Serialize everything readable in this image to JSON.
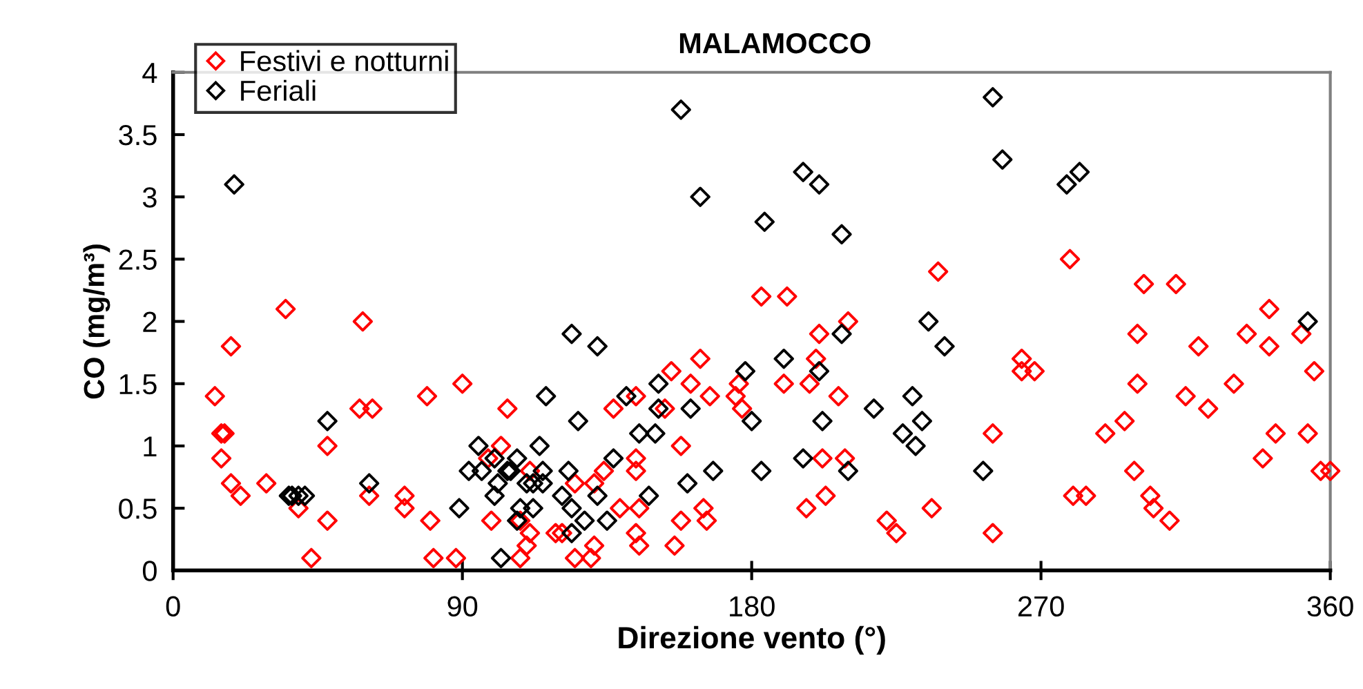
{
  "chart_data": {
    "type": "scatter",
    "title": "MALAMOCCO",
    "xlabel": "Direzione vento (°)",
    "ylabel": "CO (mg/m³)",
    "xlim": [
      0,
      360
    ],
    "xticks": [
      0,
      90,
      180,
      270,
      360
    ],
    "ylim": [
      0,
      4
    ],
    "yticks": [
      0,
      0.5,
      1,
      1.5,
      2,
      2.5,
      3,
      3.5,
      4
    ],
    "marker": "diamond",
    "legend": "top left",
    "grid": false,
    "series": [
      {
        "name": "Festivi e notturni",
        "color": "#ff0000",
        "x": [
          13,
          15,
          16,
          15,
          18,
          18,
          21,
          29,
          35,
          39,
          43,
          48,
          48,
          59,
          58,
          62,
          61,
          72,
          72,
          79,
          80,
          81,
          88,
          90,
          99,
          102,
          104,
          98,
          111,
          108,
          111,
          110,
          108,
          119,
          121,
          125,
          125,
          130,
          131,
          131,
          134,
          137,
          139,
          144,
          144,
          144,
          145,
          144,
          145,
          153,
          155,
          156,
          158,
          158,
          161,
          164,
          167,
          165,
          166,
          175,
          176,
          177,
          183,
          190,
          191,
          197,
          198,
          200,
          201,
          202,
          203,
          207,
          209,
          210,
          222,
          225,
          236,
          238,
          255,
          255,
          264,
          264,
          268,
          279,
          280,
          284,
          290,
          296,
          299,
          300,
          300,
          302,
          304,
          305,
          310,
          312,
          315,
          319,
          322,
          330,
          334,
          339,
          341,
          341,
          343,
          351,
          353,
          355,
          357,
          360
        ],
        "values": [
          1.4,
          1.1,
          1.1,
          0.9,
          1.8,
          0.7,
          0.6,
          0.7,
          2.1,
          0.5,
          0.1,
          0.4,
          1.0,
          2.0,
          1.3,
          1.3,
          0.6,
          0.6,
          0.5,
          1.4,
          0.4,
          0.1,
          0.1,
          1.5,
          0.4,
          1.0,
          1.3,
          0.9,
          0.8,
          0.4,
          0.3,
          0.2,
          0.1,
          0.3,
          0.3,
          0.7,
          0.1,
          0.1,
          0.2,
          0.7,
          0.8,
          1.3,
          0.5,
          1.4,
          0.9,
          0.8,
          0.5,
          0.3,
          0.2,
          1.3,
          1.6,
          0.2,
          0.4,
          1.0,
          1.5,
          1.7,
          1.4,
          0.5,
          0.4,
          1.4,
          1.5,
          1.3,
          2.2,
          1.5,
          2.2,
          0.5,
          1.5,
          1.7,
          1.9,
          0.9,
          0.6,
          1.4,
          0.9,
          2.0,
          0.4,
          0.3,
          0.5,
          2.4,
          1.1,
          0.3,
          1.7,
          1.6,
          1.6,
          2.5,
          0.6,
          0.6,
          1.1,
          1.2,
          0.8,
          1.5,
          1.9,
          2.3,
          0.6,
          0.5,
          0.4,
          2.3,
          1.4,
          1.8,
          1.3,
          1.5,
          1.9,
          0.9,
          2.1,
          1.8,
          1.1,
          1.9,
          1.1,
          1.6,
          0.8,
          0.8
        ]
      },
      {
        "name": "Feriali",
        "color": "#000000",
        "x": [
          19,
          36,
          37,
          39,
          41,
          48,
          61,
          89,
          92,
          95,
          96,
          100,
          100,
          101,
          102,
          104,
          105,
          107,
          107,
          108,
          110,
          112,
          112,
          114,
          115,
          115,
          116,
          121,
          123,
          124,
          124,
          124,
          126,
          132,
          128,
          132,
          135,
          137,
          141,
          145,
          150,
          151,
          151,
          148,
          158,
          160,
          161,
          164,
          168,
          178,
          180,
          183,
          184,
          190,
          196,
          196,
          201,
          201,
          202,
          208,
          208,
          210,
          218,
          227,
          230,
          233,
          231,
          235,
          240,
          255,
          252,
          258,
          278,
          282,
          353
        ],
        "values": [
          3.1,
          0.6,
          0.6,
          0.6,
          0.6,
          1.2,
          0.7,
          0.5,
          0.8,
          1.0,
          0.8,
          0.9,
          0.6,
          0.7,
          0.1,
          0.8,
          0.8,
          0.9,
          0.4,
          0.5,
          0.7,
          0.7,
          0.5,
          1.0,
          0.8,
          0.7,
          1.4,
          0.6,
          0.8,
          0.5,
          0.3,
          1.9,
          1.2,
          1.8,
          0.4,
          0.6,
          0.4,
          0.9,
          1.4,
          1.1,
          1.1,
          1.5,
          1.3,
          0.6,
          3.7,
          0.7,
          1.3,
          3.0,
          0.8,
          1.6,
          1.2,
          0.8,
          2.8,
          1.7,
          3.2,
          0.9,
          3.1,
          1.6,
          1.2,
          1.9,
          2.7,
          0.8,
          1.3,
          1.1,
          1.4,
          1.2,
          1.0,
          2.0,
          1.8,
          3.8,
          0.8,
          3.3,
          3.1,
          3.2,
          2.0
        ]
      }
    ]
  }
}
